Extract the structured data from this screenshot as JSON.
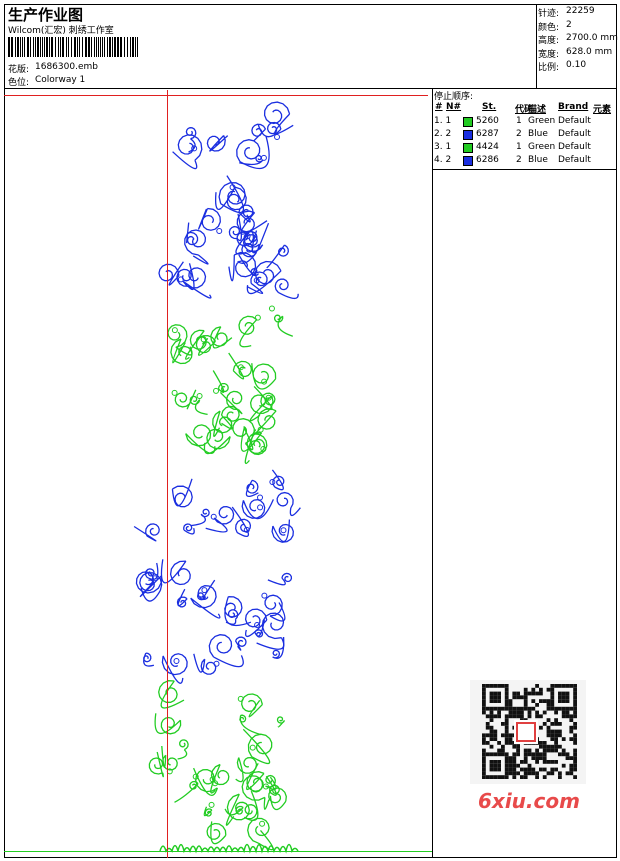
{
  "header": {
    "title": "生产作业图",
    "studio": "Wilcom(汇宏) 刺绣工作室",
    "design_label": "花版:",
    "design_file": "1686300.emb",
    "colorway_label": "色位:",
    "colorway": "Colorway 1"
  },
  "info": [
    {
      "label": "针迹:",
      "value": "22259"
    },
    {
      "label": "颜色:",
      "value": "2"
    },
    {
      "label": "高度:",
      "value": "2700.0 mm"
    },
    {
      "label": "宽度:",
      "value": "628.0 mm"
    },
    {
      "label": "比例:",
      "value": "0.10"
    }
  ],
  "stop_sequence": {
    "title": "停止顺序:",
    "columns": [
      "#",
      "N#",
      "St.",
      "代码",
      "描述",
      "Brand",
      "元素"
    ],
    "rows": [
      {
        "num": "1. 1",
        "color": "#22cc22",
        "code": "5260",
        "n": "1",
        "desc": "Green",
        "brand": "Default"
      },
      {
        "num": "2. 2",
        "color": "#1a2ee0",
        "code": "6287",
        "n": "2",
        "desc": "Blue",
        "brand": "Default"
      },
      {
        "num": "3. 1",
        "color": "#22cc22",
        "code": "4424",
        "n": "1",
        "desc": "Green",
        "brand": "Default"
      },
      {
        "num": "4. 2",
        "color": "#1a2ee0",
        "code": "6286",
        "n": "2",
        "desc": "Blue",
        "brand": "Default"
      }
    ]
  },
  "watermark": "6xiu.com"
}
